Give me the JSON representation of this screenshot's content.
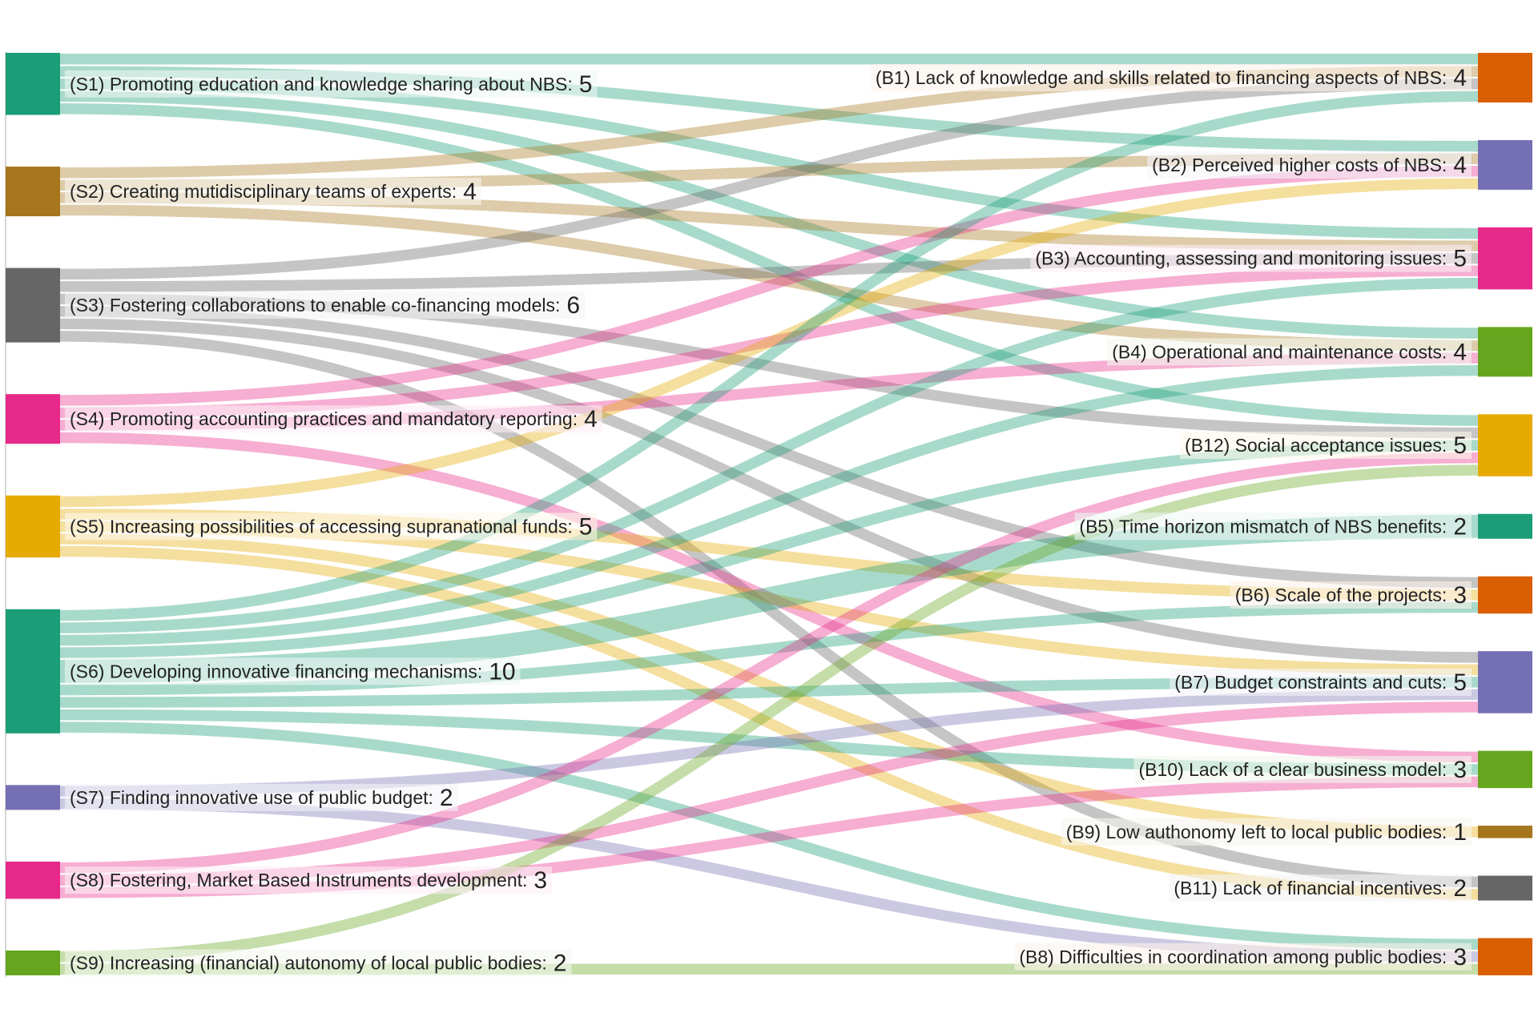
{
  "chart_data": {
    "type": "sankey",
    "title": "",
    "sources": [
      {
        "id": "S1",
        "label": "(S1) Promoting education and knowledge sharing about NBS:",
        "value": 5,
        "color": "#1b9e77"
      },
      {
        "id": "S2",
        "label": "(S2) Creating mutidisciplinary teams of experts:",
        "value": 4,
        "color": "#a6761d"
      },
      {
        "id": "S3",
        "label": "(S3) Fostering collaborations to enable co-financing models:",
        "value": 6,
        "color": "#666666"
      },
      {
        "id": "S4",
        "label": "(S4) Promoting accounting practices and mandatory reporting:",
        "value": 4,
        "color": "#e7298a"
      },
      {
        "id": "S5",
        "label": "(S5) Increasing possibilities of accessing supranational funds:",
        "value": 5,
        "color": "#e6ab02"
      },
      {
        "id": "S6",
        "label": "(S6) Developing innovative financing mechanisms:",
        "value": 10,
        "color": "#1b9e77"
      },
      {
        "id": "S7",
        "label": "(S7) Finding innovative use of public budget:",
        "value": 2,
        "color": "#7570b3"
      },
      {
        "id": "S8",
        "label": "(S8) Fostering, Market Based Instruments development:",
        "value": 3,
        "color": "#e7298a"
      },
      {
        "id": "S9",
        "label": "(S9) Increasing (financial) autonomy of local public bodies:",
        "value": 2,
        "color": "#66a61e"
      }
    ],
    "barriers": [
      {
        "id": "B1",
        "label": "(B1) Lack of knowledge and skills related to financing aspects of NBS:",
        "value": 4,
        "color": "#d95f02"
      },
      {
        "id": "B2",
        "label": "(B2) Perceived higher costs of NBS:",
        "value": 4,
        "color": "#7570b3"
      },
      {
        "id": "B3",
        "label": "(B3) Accounting, assessing and monitoring issues:",
        "value": 5,
        "color": "#e7298a"
      },
      {
        "id": "B4",
        "label": "(B4) Operational and maintenance costs:",
        "value": 4,
        "color": "#66a61e"
      },
      {
        "id": "B12",
        "label": "(B12) Social acceptance issues:",
        "value": 5,
        "color": "#e6ab02"
      },
      {
        "id": "B5",
        "label": "(B5) Time horizon mismatch of NBS benefits:",
        "value": 2,
        "color": "#1b9e77"
      },
      {
        "id": "B6",
        "label": "(B6) Scale of the projects:",
        "value": 3,
        "color": "#d95f02"
      },
      {
        "id": "B7",
        "label": "(B7) Budget constraints and cuts:",
        "value": 5,
        "color": "#7570b3"
      },
      {
        "id": "B10",
        "label": "(B10) Lack of a clear business model:",
        "value": 3,
        "color": "#66a61e"
      },
      {
        "id": "B9",
        "label": "(B9) Low authonomy left to local public bodies:",
        "value": 1,
        "color": "#a6761d"
      },
      {
        "id": "B11",
        "label": "(B11) Lack of financial incentives:",
        "value": 2,
        "color": "#666666"
      },
      {
        "id": "B8",
        "label": "(B8) Difficulties in coordination among public bodies:",
        "value": 3,
        "color": "#d95f02"
      }
    ],
    "links": [
      {
        "source": "S1",
        "target": "B1",
        "value": 1
      },
      {
        "source": "S1",
        "target": "B2",
        "value": 1
      },
      {
        "source": "S1",
        "target": "B3",
        "value": 1
      },
      {
        "source": "S1",
        "target": "B4",
        "value": 1
      },
      {
        "source": "S1",
        "target": "B12",
        "value": 1
      },
      {
        "source": "S2",
        "target": "B1",
        "value": 1
      },
      {
        "source": "S2",
        "target": "B2",
        "value": 1
      },
      {
        "source": "S2",
        "target": "B3",
        "value": 1
      },
      {
        "source": "S2",
        "target": "B4",
        "value": 1
      },
      {
        "source": "S3",
        "target": "B1",
        "value": 1
      },
      {
        "source": "S3",
        "target": "B3",
        "value": 1
      },
      {
        "source": "S3",
        "target": "B12",
        "value": 1
      },
      {
        "source": "S3",
        "target": "B6",
        "value": 1
      },
      {
        "source": "S3",
        "target": "B7",
        "value": 1
      },
      {
        "source": "S3",
        "target": "B11",
        "value": 1
      },
      {
        "source": "S4",
        "target": "B2",
        "value": 1
      },
      {
        "source": "S4",
        "target": "B3",
        "value": 1
      },
      {
        "source": "S4",
        "target": "B4",
        "value": 1
      },
      {
        "source": "S4",
        "target": "B10",
        "value": 1
      },
      {
        "source": "S5",
        "target": "B2",
        "value": 1
      },
      {
        "source": "S5",
        "target": "B6",
        "value": 1
      },
      {
        "source": "S5",
        "target": "B7",
        "value": 1
      },
      {
        "source": "S5",
        "target": "B9",
        "value": 1
      },
      {
        "source": "S5",
        "target": "B11",
        "value": 1
      },
      {
        "source": "S6",
        "target": "B1",
        "value": 1
      },
      {
        "source": "S6",
        "target": "B3",
        "value": 1
      },
      {
        "source": "S6",
        "target": "B4",
        "value": 1
      },
      {
        "source": "S6",
        "target": "B12",
        "value": 1
      },
      {
        "source": "S6",
        "target": "B5",
        "value": 2
      },
      {
        "source": "S6",
        "target": "B6",
        "value": 1
      },
      {
        "source": "S6",
        "target": "B7",
        "value": 1
      },
      {
        "source": "S6",
        "target": "B10",
        "value": 1
      },
      {
        "source": "S6",
        "target": "B8",
        "value": 1
      },
      {
        "source": "S7",
        "target": "B7",
        "value": 1
      },
      {
        "source": "S7",
        "target": "B8",
        "value": 1
      },
      {
        "source": "S8",
        "target": "B12",
        "value": 1
      },
      {
        "source": "S8",
        "target": "B7",
        "value": 1
      },
      {
        "source": "S8",
        "target": "B10",
        "value": 1
      },
      {
        "source": "S9",
        "target": "B12",
        "value": 1
      },
      {
        "source": "S9",
        "target": "B8",
        "value": 1
      }
    ]
  }
}
